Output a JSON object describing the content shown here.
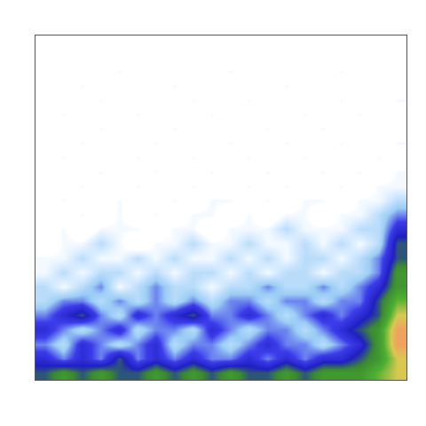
{
  "chart_data": {
    "type": "heatmap",
    "tick_labels": false,
    "grid": false,
    "zlim": [
      0,
      10
    ],
    "cells": [
      [
        5,
        6,
        5,
        6,
        5,
        5,
        6,
        5,
        6,
        5,
        6,
        5,
        5,
        6,
        5,
        6,
        6,
        6,
        7,
        8
      ],
      [
        4,
        3,
        4,
        3,
        5,
        3,
        4,
        3,
        4,
        3,
        3,
        4,
        3,
        4,
        3,
        4,
        4,
        5,
        6,
        8
      ],
      [
        3,
        2,
        4,
        3,
        2,
        3,
        4,
        2,
        3,
        3,
        2,
        3,
        4,
        3,
        3,
        2,
        3,
        4,
        6,
        9
      ],
      [
        4,
        3,
        2,
        3,
        4,
        2,
        3,
        3,
        2,
        4,
        3,
        2,
        3,
        3,
        2,
        3,
        4,
        5,
        6,
        9
      ],
      [
        3,
        4,
        5,
        3,
        2,
        4,
        3,
        4,
        5,
        3,
        3,
        4,
        3,
        2,
        3,
        4,
        3,
        4,
        5,
        8
      ],
      [
        2,
        3,
        3,
        2,
        3,
        2,
        3,
        2,
        3,
        2,
        3,
        3,
        2,
        3,
        3,
        2,
        3,
        3,
        5,
        7
      ],
      [
        2,
        1,
        2,
        3,
        1,
        2,
        3,
        2,
        2,
        1,
        2,
        2,
        3,
        2,
        2,
        3,
        2,
        3,
        4,
        6
      ],
      [
        1,
        2,
        1,
        2,
        2,
        1,
        2,
        1,
        2,
        2,
        1,
        2,
        1,
        2,
        2,
        1,
        2,
        2,
        3,
        6
      ],
      [
        1,
        1,
        2,
        1,
        1,
        2,
        1,
        2,
        1,
        1,
        2,
        1,
        2,
        1,
        2,
        2,
        1,
        2,
        3,
        5
      ],
      [
        0,
        1,
        1,
        2,
        1,
        0,
        1,
        1,
        2,
        1,
        1,
        2,
        1,
        1,
        2,
        1,
        2,
        1,
        2,
        5
      ],
      [
        0,
        1,
        0,
        1,
        1,
        1,
        0,
        1,
        1,
        0,
        1,
        1,
        1,
        2,
        1,
        1,
        1,
        2,
        2,
        4
      ],
      [
        0,
        0,
        1,
        0,
        1,
        0,
        1,
        0,
        1,
        1,
        0,
        1,
        0,
        1,
        1,
        0,
        1,
        1,
        2,
        3
      ],
      [
        0,
        1,
        0,
        0,
        1,
        0,
        0,
        1,
        0,
        1,
        1,
        0,
        1,
        0,
        1,
        1,
        0,
        1,
        1,
        2
      ],
      [
        0,
        0,
        1,
        0,
        0,
        1,
        0,
        0,
        1,
        0,
        0,
        1,
        0,
        1,
        0,
        0,
        1,
        0,
        1,
        1
      ],
      [
        0,
        0,
        0,
        1,
        0,
        0,
        1,
        0,
        0,
        1,
        0,
        0,
        1,
        0,
        0,
        1,
        0,
        1,
        0,
        1
      ],
      [
        0,
        1,
        0,
        0,
        0,
        1,
        0,
        0,
        1,
        0,
        0,
        1,
        0,
        0,
        1,
        0,
        0,
        0,
        1,
        0
      ],
      [
        0,
        0,
        1,
        0,
        0,
        0,
        1,
        0,
        0,
        0,
        1,
        0,
        0,
        1,
        0,
        0,
        1,
        0,
        0,
        1
      ],
      [
        0,
        0,
        0,
        1,
        0,
        0,
        0,
        1,
        0,
        0,
        0,
        0,
        1,
        0,
        0,
        1,
        0,
        0,
        0,
        0
      ],
      [
        0,
        1,
        0,
        0,
        0,
        1,
        0,
        0,
        0,
        1,
        0,
        0,
        0,
        0,
        1,
        0,
        0,
        1,
        0,
        0
      ],
      [
        0,
        0,
        0,
        1,
        0,
        0,
        0,
        0,
        1,
        0,
        0,
        1,
        0,
        0,
        0,
        0,
        1,
        0,
        0,
        1
      ],
      [
        0,
        0,
        1,
        0,
        0,
        0,
        0,
        1,
        0,
        0,
        0,
        0,
        0,
        1,
        0,
        0,
        0,
        0,
        0,
        0
      ],
      [
        0,
        0,
        0,
        0,
        1,
        0,
        0,
        0,
        0,
        0,
        1,
        0,
        0,
        0,
        0,
        0,
        1,
        0,
        0,
        0
      ],
      [
        0,
        0,
        0,
        0,
        0,
        0,
        0,
        0,
        0,
        0,
        0,
        0,
        0,
        0,
        0,
        0,
        0,
        0,
        0,
        0
      ],
      [
        0,
        0,
        0,
        0,
        0,
        0,
        0,
        0,
        0,
        0,
        0,
        0,
        0,
        0,
        0,
        0,
        0,
        0,
        0,
        0
      ]
    ]
  }
}
